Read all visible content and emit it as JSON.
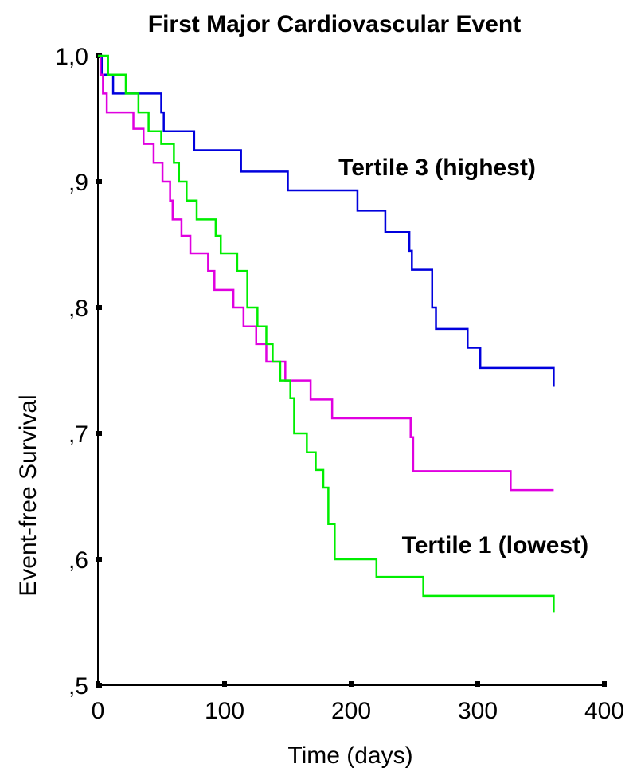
{
  "chart_data": {
    "type": "line",
    "title": "First Major Cardiovascular Event",
    "xlabel": "Time (days)",
    "ylabel": "Event-free Survival",
    "xlim": [
      0,
      400
    ],
    "ylim": [
      0.5,
      1.0
    ],
    "x_ticks": [
      0,
      100,
      200,
      300,
      400
    ],
    "x_tick_labels": [
      "0",
      "100",
      "200",
      "300",
      "400"
    ],
    "y_ticks": [
      0.5,
      0.6,
      0.7,
      0.8,
      0.9,
      1.0
    ],
    "y_tick_labels": [
      ",5",
      ",6",
      ",7",
      ",8",
      ",9",
      "1,0"
    ],
    "grid": false,
    "step": true,
    "annotations": [
      {
        "text": "Tertile 3 (highest)",
        "x": 190,
        "y": 0.905
      },
      {
        "text": "Tertile 1 (lowest)",
        "x": 240,
        "y": 0.605
      }
    ],
    "series": [
      {
        "color": "#0000dd",
        "x": [
          0,
          3,
          12,
          50,
          52,
          53,
          76,
          113,
          150,
          205,
          227,
          246,
          248,
          264,
          267,
          292,
          302,
          360
        ],
        "y": [
          1.0,
          0.985,
          0.97,
          0.955,
          0.94,
          0.94,
          0.925,
          0.908,
          0.893,
          0.877,
          0.86,
          0.845,
          0.83,
          0.8,
          0.783,
          0.768,
          0.752,
          0.737
        ]
      },
      {
        "color": "#e000e0",
        "x": [
          0,
          2,
          4,
          7,
          28,
          36,
          44,
          51,
          57,
          59,
          66,
          73,
          87,
          92,
          107,
          115,
          125,
          133,
          148,
          168,
          185,
          247,
          249,
          326,
          360
        ],
        "y": [
          1.0,
          0.985,
          0.97,
          0.955,
          0.942,
          0.93,
          0.915,
          0.9,
          0.885,
          0.87,
          0.857,
          0.843,
          0.829,
          0.814,
          0.8,
          0.785,
          0.771,
          0.757,
          0.742,
          0.727,
          0.712,
          0.697,
          0.67,
          0.655,
          0.655
        ]
      },
      {
        "color": "#00ee00",
        "x": [
          0,
          8,
          22,
          32,
          40,
          50,
          60,
          64,
          70,
          78,
          93,
          97,
          110,
          118,
          126,
          133,
          138,
          144,
          152,
          155,
          165,
          172,
          178,
          182,
          187,
          220,
          257,
          360
        ],
        "y": [
          1.0,
          0.985,
          0.97,
          0.955,
          0.94,
          0.93,
          0.915,
          0.9,
          0.885,
          0.87,
          0.857,
          0.843,
          0.829,
          0.8,
          0.785,
          0.771,
          0.757,
          0.742,
          0.728,
          0.7,
          0.685,
          0.671,
          0.657,
          0.628,
          0.6,
          0.586,
          0.571,
          0.558
        ]
      }
    ]
  }
}
